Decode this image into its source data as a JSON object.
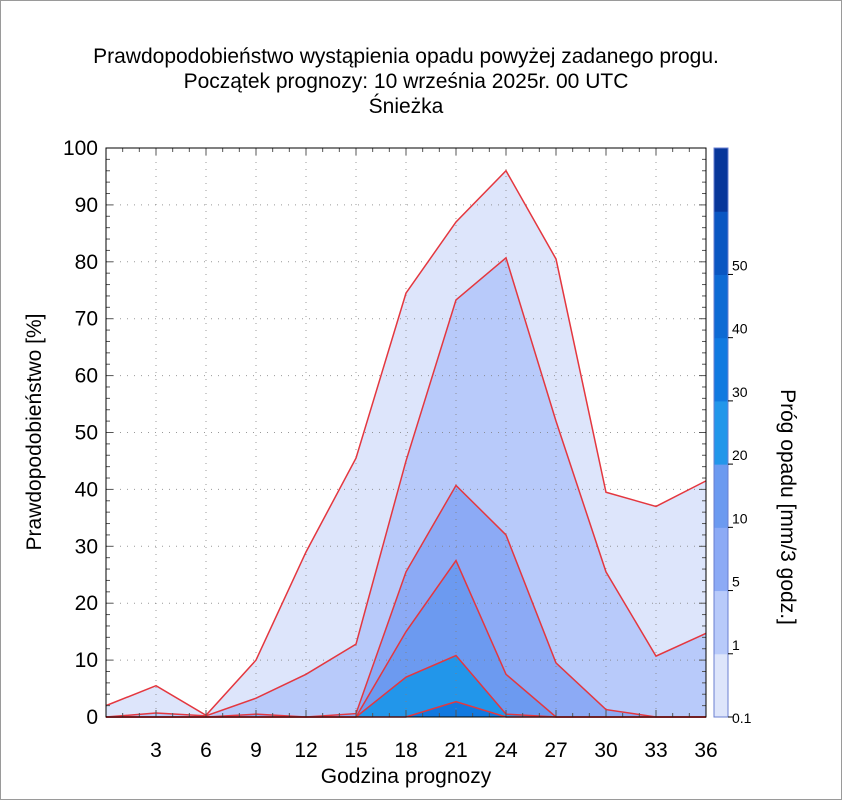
{
  "chart_data": {
    "type": "area",
    "title": "Prawdopodobieństwo wystąpienia opadu powyżej zadanego progu.",
    "subtitle": "Początek prognozy: 10 września 2025r. 00 UTC",
    "location": "Śnieżka",
    "xlabel": "Godzina prognozy",
    "ylabel": "Prawdopodobieństwo [%]",
    "colorbar_label": "Próg opadu [mm/3 godz.]",
    "x": [
      0,
      3,
      6,
      9,
      12,
      15,
      18,
      21,
      24,
      27,
      30,
      33,
      36
    ],
    "xticks": [
      "3",
      "6",
      "9",
      "12",
      "15",
      "18",
      "21",
      "24",
      "27",
      "30",
      "33",
      "36"
    ],
    "yticks": [
      "0",
      "10",
      "20",
      "30",
      "40",
      "50",
      "60",
      "70",
      "80",
      "90",
      "100"
    ],
    "xlim": [
      0,
      36
    ],
    "ylim": [
      0,
      100
    ],
    "grid": true,
    "series": [
      {
        "name": "0.1",
        "color": "#dde5fb",
        "values": [
          2,
          5.5,
          0.3,
          10,
          29,
          45.5,
          74.5,
          87,
          96,
          80.5,
          39.5,
          37,
          41.5
        ]
      },
      {
        "name": "1",
        "color": "#b8cafa",
        "values": [
          0,
          0.7,
          0.2,
          3.3,
          7.5,
          12.8,
          45,
          73.3,
          80.7,
          52,
          25.5,
          10.7,
          14.7
        ]
      },
      {
        "name": "5",
        "color": "#8caaf5",
        "values": [
          0,
          0,
          0,
          0.5,
          0,
          0.6,
          25.5,
          40.7,
          32,
          9.5,
          1.3,
          0,
          0
        ]
      },
      {
        "name": "10",
        "color": "#6c9af0",
        "values": [
          0,
          0,
          0,
          0,
          0,
          0,
          15,
          27.5,
          7.5,
          0,
          0,
          0,
          0
        ]
      },
      {
        "name": "20",
        "color": "#2296ea",
        "values": [
          0,
          0,
          0,
          0,
          0,
          0,
          7,
          10.8,
          0.5,
          0,
          0,
          0,
          0
        ]
      },
      {
        "name": "30",
        "color": "#1179e0",
        "values": [
          0,
          0,
          0,
          0,
          0,
          0,
          0,
          2.7,
          0,
          0,
          0,
          0,
          0
        ]
      }
    ],
    "colorbar": {
      "labels": [
        "0.1",
        "1",
        "5",
        "10",
        "20",
        "30",
        "40",
        "50"
      ],
      "colors": [
        "#dde5fb",
        "#b8cafa",
        "#8caaf5",
        "#6c9af0",
        "#2296ea",
        "#1179e0",
        "#0e6ad4",
        "#0a56c2",
        "#07369a"
      ]
    },
    "colors": {
      "line": "#e4373f",
      "title": "#000000",
      "subtitle": "#1a1ae6",
      "location": "#e4373f"
    }
  }
}
